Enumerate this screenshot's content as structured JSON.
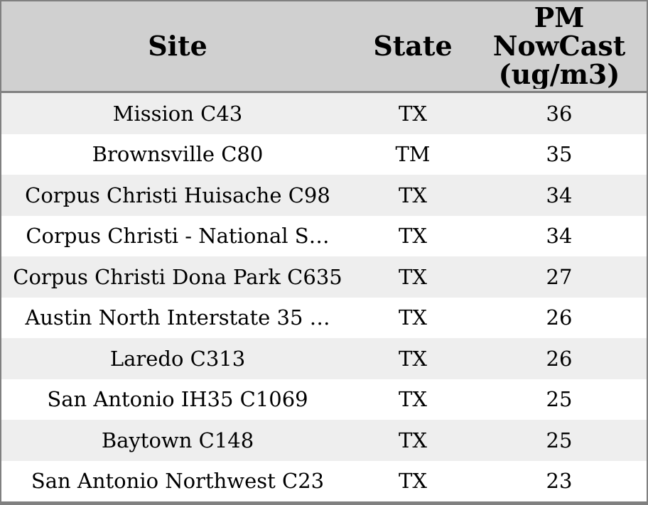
{
  "chart_data": {
    "type": "table",
    "columns": [
      "Site",
      "State",
      "PM NowCast (ug/m3)"
    ],
    "rows": [
      [
        "Mission C43",
        "TX",
        36
      ],
      [
        "Brownsville C80",
        "TM",
        35
      ],
      [
        "Corpus Christi Huisache C98",
        "TX",
        34
      ],
      [
        "Corpus Christi - National S…",
        "TX",
        34
      ],
      [
        "Corpus Christi Dona Park C635",
        "TX",
        27
      ],
      [
        "Austin North Interstate 35 …",
        "TX",
        26
      ],
      [
        "Laredo C313",
        "TX",
        26
      ],
      [
        "San Antonio IH35 C1069",
        "TX",
        25
      ],
      [
        "Baytown C148",
        "TX",
        25
      ],
      [
        "San Antonio Northwest C23",
        "TX",
        23
      ]
    ],
    "layout": {
      "striped_rows": true,
      "header_position": "top"
    }
  },
  "colors": {
    "header_bg": "#d0d0d0",
    "row_stripe_bg": "#eeeeee",
    "row_bg": "#ffffff",
    "border": "#808080",
    "text": "#000000"
  }
}
